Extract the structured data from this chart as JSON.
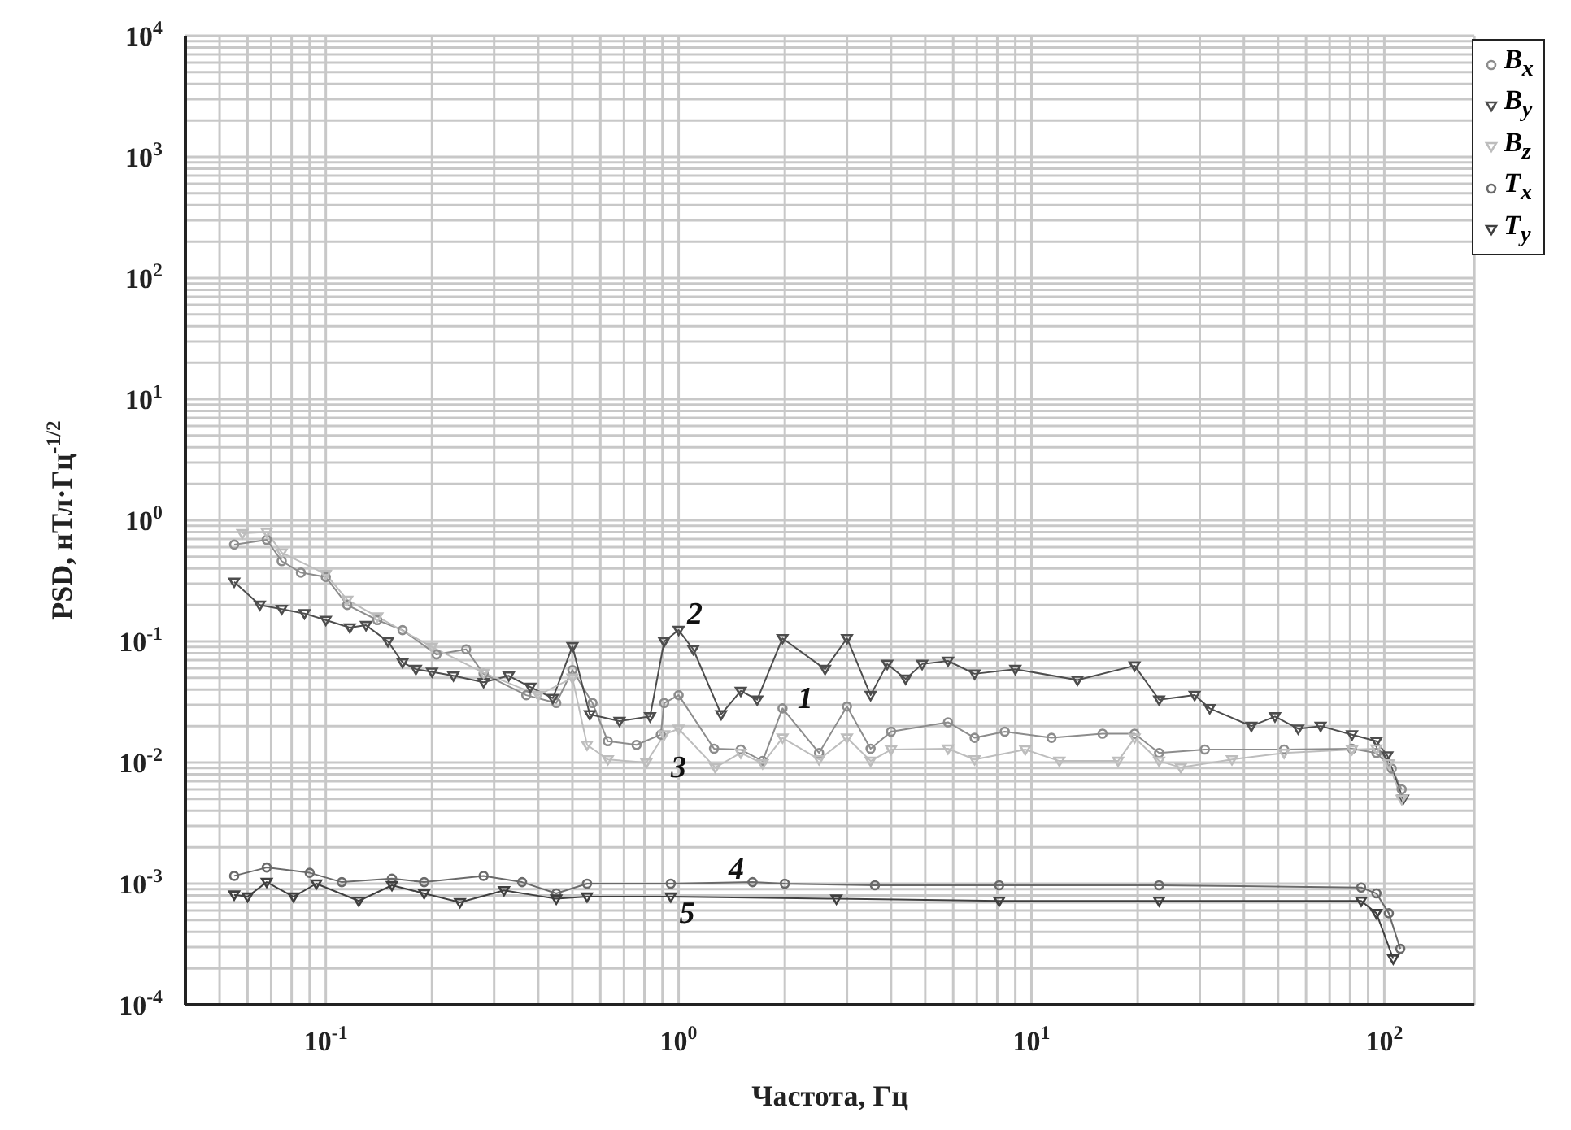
{
  "chart_data": {
    "type": "line",
    "xlabel": "Частота, Гц",
    "ylabel": "PSD, нТл·Гц$^{-1/2}$",
    "log": "xy",
    "grid": true,
    "legend": "top right",
    "xlim": [
      0.04,
      180
    ],
    "ylim": [
      0.0001,
      10000
    ],
    "xticks": [
      {
        "value": 0.04,
        "label": null
      },
      {
        "value": 0.05,
        "label": null
      },
      {
        "value": 0.06,
        "label": null
      },
      {
        "value": 0.07,
        "label": null
      },
      {
        "value": 0.08,
        "label": null
      },
      {
        "value": 0.09,
        "label": null
      },
      {
        "value": 0.1,
        "label": "10$^{-1}$"
      },
      {
        "value": 0.2,
        "label": null
      },
      {
        "value": 0.3,
        "label": null
      },
      {
        "value": 0.4,
        "label": null
      },
      {
        "value": 0.5,
        "label": null
      },
      {
        "value": 0.6,
        "label": null
      },
      {
        "value": 0.7,
        "label": null
      },
      {
        "value": 0.8,
        "label": null
      },
      {
        "value": 0.9,
        "label": null
      },
      {
        "value": 1,
        "label": "10$^{0}$"
      },
      {
        "value": 2,
        "label": null
      },
      {
        "value": 3,
        "label": null
      },
      {
        "value": 4,
        "label": null
      },
      {
        "value": 5,
        "label": null
      },
      {
        "value": 6,
        "label": null
      },
      {
        "value": 7,
        "label": null
      },
      {
        "value": 8,
        "label": null
      },
      {
        "value": 9,
        "label": null
      },
      {
        "value": 10,
        "label": "10$^{1}$"
      },
      {
        "value": 20,
        "label": null
      },
      {
        "value": 30,
        "label": null
      },
      {
        "value": 40,
        "label": null
      },
      {
        "value": 50,
        "label": null
      },
      {
        "value": 60,
        "label": null
      },
      {
        "value": 70,
        "label": null
      },
      {
        "value": 80,
        "label": null
      },
      {
        "value": 90,
        "label": null
      },
      {
        "value": 100,
        "label": "10$^{2}$"
      }
    ],
    "yticks": [
      {
        "value": 0.0001,
        "label": "10$^{-4}$"
      },
      {
        "value": 0.0002,
        "label": null
      },
      {
        "value": 0.0003,
        "label": null
      },
      {
        "value": 0.0004,
        "label": null
      },
      {
        "value": 0.0005,
        "label": null
      },
      {
        "value": 0.0006,
        "label": null
      },
      {
        "value": 0.0007,
        "label": null
      },
      {
        "value": 0.0008,
        "label": null
      },
      {
        "value": 0.0009,
        "label": null
      },
      {
        "value": 0.001,
        "label": "10$^{-3}$"
      },
      {
        "value": 0.002,
        "label": null
      },
      {
        "value": 0.003,
        "label": null
      },
      {
        "value": 0.004,
        "label": null
      },
      {
        "value": 0.005,
        "label": null
      },
      {
        "value": 0.006,
        "label": null
      },
      {
        "value": 0.007,
        "label": null
      },
      {
        "value": 0.008,
        "label": null
      },
      {
        "value": 0.009,
        "label": null
      },
      {
        "value": 0.01,
        "label": "10$^{-2}$"
      },
      {
        "value": 0.02,
        "label": null
      },
      {
        "value": 0.03,
        "label": null
      },
      {
        "value": 0.04,
        "label": null
      },
      {
        "value": 0.05,
        "label": null
      },
      {
        "value": 0.06,
        "label": null
      },
      {
        "value": 0.07,
        "label": null
      },
      {
        "value": 0.08,
        "label": null
      },
      {
        "value": 0.09,
        "label": null
      },
      {
        "value": 0.1,
        "label": "10$^{-1}$"
      },
      {
        "value": 0.2,
        "label": null
      },
      {
        "value": 0.3,
        "label": null
      },
      {
        "value": 0.4,
        "label": null
      },
      {
        "value": 0.5,
        "label": null
      },
      {
        "value": 0.6,
        "label": null
      },
      {
        "value": 0.7,
        "label": null
      },
      {
        "value": 0.8,
        "label": null
      },
      {
        "value": 0.9,
        "label": null
      },
      {
        "value": 1,
        "label": "10$^{0}$"
      },
      {
        "value": 2,
        "label": null
      },
      {
        "value": 3,
        "label": null
      },
      {
        "value": 4,
        "label": null
      },
      {
        "value": 5,
        "label": null
      },
      {
        "value": 6,
        "label": null
      },
      {
        "value": 7,
        "label": null
      },
      {
        "value": 8,
        "label": null
      },
      {
        "value": 9,
        "label": null
      },
      {
        "value": 10,
        "label": "10$^{1}$"
      },
      {
        "value": 20,
        "label": null
      },
      {
        "value": 30,
        "label": null
      },
      {
        "value": 40,
        "label": null
      },
      {
        "value": 50,
        "label": null
      },
      {
        "value": 60,
        "label": null
      },
      {
        "value": 70,
        "label": null
      },
      {
        "value": 80,
        "label": null
      },
      {
        "value": 90,
        "label": null
      },
      {
        "value": 100,
        "label": "10$^{2}$"
      },
      {
        "value": 200,
        "label": null
      },
      {
        "value": 300,
        "label": null
      },
      {
        "value": 400,
        "label": null
      },
      {
        "value": 500,
        "label": null
      },
      {
        "value": 600,
        "label": null
      },
      {
        "value": 700,
        "label": null
      },
      {
        "value": 800,
        "label": null
      },
      {
        "value": 900,
        "label": null
      },
      {
        "value": 1000,
        "label": "10$^{3}$"
      },
      {
        "value": 2000,
        "label": null
      },
      {
        "value": 3000,
        "label": null
      },
      {
        "value": 4000,
        "label": null
      },
      {
        "value": 5000,
        "label": null
      },
      {
        "value": 6000,
        "label": null
      },
      {
        "value": 7000,
        "label": null
      },
      {
        "value": 8000,
        "label": null
      },
      {
        "value": 9000,
        "label": null
      },
      {
        "value": 10000,
        "label": "10$^{4}$"
      }
    ],
    "series": [
      {
        "name": "B$_{x}$",
        "color": "#8c8c8c",
        "marker": "circle",
        "x": [
          0.055,
          0.068,
          0.075,
          0.085,
          0.1,
          0.115,
          0.14,
          0.165,
          0.206,
          0.25,
          0.28,
          0.37,
          0.45,
          0.5,
          0.57,
          0.63,
          0.76,
          0.89,
          0.91,
          1.0,
          1.26,
          1.5,
          1.73,
          1.97,
          2.5,
          3.0,
          3.5,
          4.0,
          5.8,
          6.9,
          8.4,
          11.4,
          15.9,
          19.6,
          23,
          31,
          52,
          81,
          95,
          105,
          112
        ],
        "values": [
          0.63,
          0.69,
          0.46,
          0.37,
          0.34,
          0.2,
          0.15,
          0.124,
          0.078,
          0.086,
          0.054,
          0.036,
          0.031,
          0.058,
          0.031,
          0.015,
          0.014,
          0.017,
          0.031,
          0.036,
          0.013,
          0.0128,
          0.0103,
          0.028,
          0.012,
          0.029,
          0.013,
          0.018,
          0.0215,
          0.016,
          0.018,
          0.016,
          0.0173,
          0.0173,
          0.012,
          0.0128,
          0.0128,
          0.013,
          0.012,
          0.0089,
          0.006
        ]
      },
      {
        "name": "B$_{y}$",
        "color": "#4d4d4d",
        "marker": "triangle",
        "x": [
          0.055,
          0.065,
          0.075,
          0.087,
          0.1,
          0.117,
          0.13,
          0.15,
          0.165,
          0.18,
          0.2,
          0.23,
          0.28,
          0.33,
          0.38,
          0.44,
          0.5,
          0.56,
          0.68,
          0.83,
          0.91,
          1.0,
          1.1,
          1.32,
          1.5,
          1.67,
          1.97,
          2.6,
          3.0,
          3.5,
          3.9,
          4.4,
          4.9,
          5.8,
          6.9,
          9,
          13.5,
          19.6,
          23,
          29,
          32,
          42,
          49,
          57,
          66,
          81,
          95,
          102,
          113
        ],
        "values": [
          0.31,
          0.2,
          0.185,
          0.17,
          0.15,
          0.13,
          0.136,
          0.1,
          0.067,
          0.059,
          0.056,
          0.052,
          0.046,
          0.052,
          0.042,
          0.034,
          0.091,
          0.025,
          0.022,
          0.024,
          0.1,
          0.124,
          0.086,
          0.025,
          0.039,
          0.033,
          0.106,
          0.059,
          0.106,
          0.036,
          0.065,
          0.049,
          0.065,
          0.069,
          0.054,
          0.059,
          0.048,
          0.063,
          0.033,
          0.036,
          0.028,
          0.02,
          0.024,
          0.019,
          0.02,
          0.017,
          0.015,
          0.0114,
          0.005
        ]
      },
      {
        "name": "B$_{z}$",
        "color": "#bdbdbd",
        "marker": "triangle",
        "x": [
          0.058,
          0.068,
          0.075,
          0.1,
          0.115,
          0.14,
          0.2,
          0.28,
          0.4,
          0.5,
          0.55,
          0.63,
          0.81,
          0.91,
          1.0,
          1.27,
          1.5,
          1.73,
          1.97,
          2.5,
          3.0,
          3.5,
          4.0,
          5.8,
          6.9,
          9.6,
          12,
          17.6,
          19.6,
          23,
          26.5,
          37,
          52,
          81,
          95,
          103,
          112
        ],
        "values": [
          0.78,
          0.8,
          0.54,
          0.36,
          0.22,
          0.16,
          0.09,
          0.055,
          0.036,
          0.05,
          0.014,
          0.0106,
          0.01,
          0.017,
          0.019,
          0.0091,
          0.012,
          0.0098,
          0.016,
          0.0106,
          0.016,
          0.0103,
          0.0128,
          0.013,
          0.0106,
          0.0128,
          0.0103,
          0.0103,
          0.016,
          0.0103,
          0.0091,
          0.0106,
          0.012,
          0.0128,
          0.013,
          0.0098,
          0.005
        ]
      },
      {
        "name": "T$_{x}$",
        "color": "#6a6a6a",
        "marker": "circle",
        "x": [
          0.055,
          0.068,
          0.09,
          0.111,
          0.154,
          0.19,
          0.28,
          0.36,
          0.45,
          0.55,
          0.95,
          1.62,
          2.0,
          3.6,
          8.1,
          23,
          86,
          95,
          103,
          111
        ],
        "values": [
          0.00116,
          0.00136,
          0.00123,
          0.00103,
          0.0011,
          0.00103,
          0.00116,
          0.00103,
          0.00083,
          0.001,
          0.001,
          0.00103,
          0.001,
          0.00097,
          0.00097,
          0.00097,
          0.00093,
          0.00083,
          0.00057,
          0.00029
        ]
      },
      {
        "name": "T$_{y}$",
        "color": "#3f3f3f",
        "marker": "triangle",
        "x": [
          0.055,
          0.06,
          0.068,
          0.081,
          0.094,
          0.124,
          0.154,
          0.19,
          0.24,
          0.32,
          0.45,
          0.55,
          0.95,
          2.8,
          8.1,
          23,
          86,
          95,
          106
        ],
        "values": [
          0.00081,
          0.00078,
          0.00103,
          0.00078,
          0.001,
          0.00072,
          0.00097,
          0.00083,
          0.0007,
          0.00088,
          0.00075,
          0.00078,
          0.00078,
          0.00075,
          0.00072,
          0.00072,
          0.00072,
          0.00057,
          0.00024
        ]
      }
    ],
    "annotations": [
      {
        "text": "1",
        "x": 1.97,
        "y": 0.028
      },
      {
        "text": "2",
        "x": 1.0,
        "y": 0.124
      },
      {
        "text": "3",
        "x": 1.0,
        "y": 0.019
      },
      {
        "text": "4",
        "x": 1.62,
        "y": 0.00103
      },
      {
        "text": "5",
        "x": 0.95,
        "y": 0.00078
      }
    ]
  }
}
